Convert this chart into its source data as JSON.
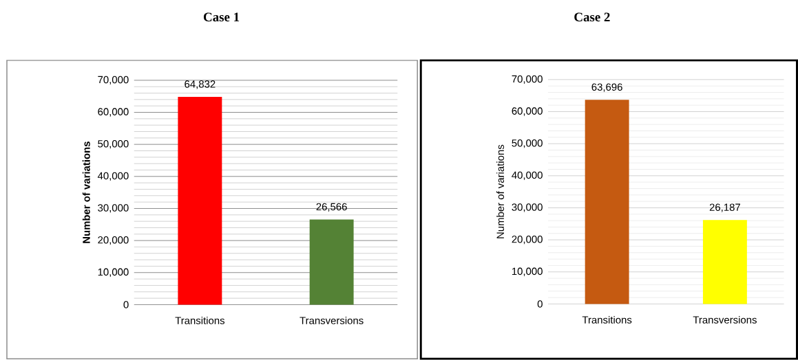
{
  "chart_data": [
    {
      "type": "bar",
      "title": "Case 1",
      "ylabel": "Number of variations",
      "categories": [
        "Transitions",
        "Transversions"
      ],
      "values": [
        64832,
        26566
      ],
      "colors": [
        "#ff0000",
        "#548235"
      ],
      "value_labels": [
        "64,832",
        "26,566"
      ],
      "ylim": [
        0,
        70000
      ],
      "yticks": [
        {
          "value": 0,
          "label": "0"
        },
        {
          "value": 10000,
          "label": "10,000"
        },
        {
          "value": 20000,
          "label": "20,000"
        },
        {
          "value": 30000,
          "label": "30,000"
        },
        {
          "value": 40000,
          "label": "40,000"
        },
        {
          "value": 50000,
          "label": "50,000"
        },
        {
          "value": 60000,
          "label": "60,000"
        },
        {
          "value": 70000,
          "label": "70,000"
        }
      ],
      "grid": "y"
    },
    {
      "type": "bar",
      "title": "Case 2",
      "ylabel": "Number of variations",
      "categories": [
        "Transitions",
        "Transversions"
      ],
      "values": [
        63696,
        26187
      ],
      "colors": [
        "#c55a11",
        "#ffff00"
      ],
      "value_labels": [
        "63,696",
        "26,187"
      ],
      "ylim": [
        0,
        70000
      ],
      "yticks": [
        {
          "value": 0,
          "label": "0"
        },
        {
          "value": 10000,
          "label": "10,000"
        },
        {
          "value": 20000,
          "label": "20,000"
        },
        {
          "value": 30000,
          "label": "30,000"
        },
        {
          "value": 40000,
          "label": "40,000"
        },
        {
          "value": 50000,
          "label": "50,000"
        },
        {
          "value": 60000,
          "label": "60,000"
        },
        {
          "value": 70000,
          "label": "70,000"
        }
      ],
      "grid": "y"
    }
  ]
}
